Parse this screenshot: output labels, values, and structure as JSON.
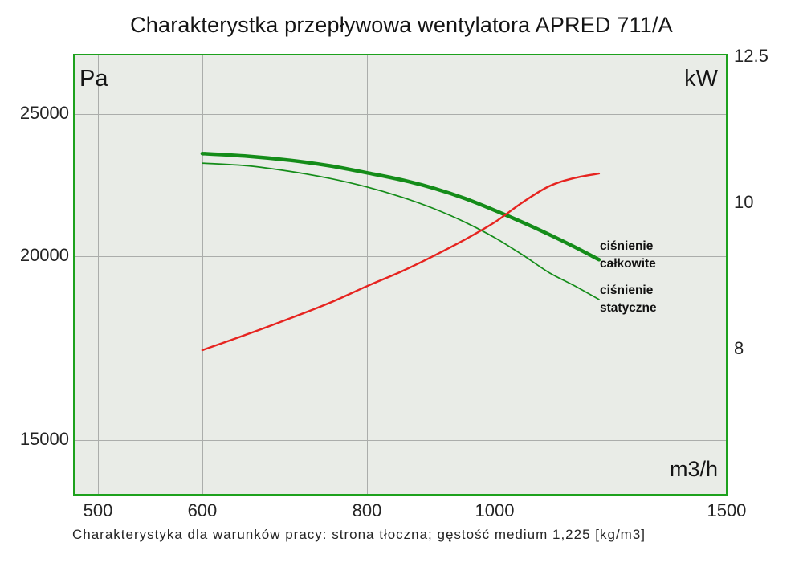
{
  "title": "Charakterystka przepływowa wentylatora APRED 711/A",
  "caption": "Charakterystyka dla warunków pracy: strona tłoczna; gęstość medium 1,225 [kg/m3]",
  "axes": {
    "left_unit": "Pa",
    "right_unit": "kW",
    "x_unit": "m3/h",
    "left_ticks": [
      "25000",
      "20000",
      "15000"
    ],
    "right_ticks": [
      "12.5",
      "10",
      "8"
    ],
    "x_ticks": [
      "500",
      "600",
      "800",
      "1000",
      "1500"
    ]
  },
  "labels": {
    "total_line1": "ciśnienie",
    "total_line2": "całkowite",
    "static_line1": "ciśnienie",
    "static_line2": "statyczne"
  },
  "colors": {
    "curve_green": "#148c19",
    "curve_red": "#e62420",
    "border_green": "#1da11d",
    "grid": "#abadab",
    "plot_bg": "#e9ece7",
    "text": "#1c1c1c"
  },
  "chart_data": {
    "type": "line",
    "title": "Charakterystka przepływowa wentylatora APRED 711/A",
    "x_scale": "log",
    "y_scale": "log",
    "grid": true,
    "x_unit": "m3/h",
    "x_ticks": [
      500,
      600,
      800,
      1000,
      1500
    ],
    "left_axis": {
      "unit": "Pa",
      "ticks": [
        25000,
        20000,
        15000
      ]
    },
    "right_axis": {
      "unit": "kW",
      "ticks": [
        12.5,
        10,
        8
      ]
    },
    "x": [
      600,
      650,
      700,
      750,
      800,
      850,
      900,
      950,
      1000,
      1050,
      1100,
      1150,
      1200
    ],
    "series": [
      {
        "key": "total",
        "name": "ciśnienie całkowite",
        "unit": "Pa",
        "axis": "left",
        "color": "#148c19",
        "values": [
          23500,
          23400,
          23250,
          23050,
          22800,
          22550,
          22250,
          21900,
          21500,
          21100,
          20700,
          20300,
          19900
        ]
      },
      {
        "key": "static",
        "name": "ciśnienie statyczne",
        "unit": "Pa",
        "axis": "left",
        "color": "#148c19",
        "values": [
          23150,
          23050,
          22850,
          22600,
          22300,
          21950,
          21550,
          21100,
          20600,
          20050,
          19500,
          19100,
          18700
        ]
      },
      {
        "key": "power",
        "name": "kW",
        "unit": "kW",
        "axis": "right",
        "color": "#e62420",
        "values": [
          7.98,
          8.18,
          8.38,
          8.58,
          8.8,
          9.0,
          9.22,
          9.45,
          9.7,
          10.0,
          10.25,
          10.38,
          10.45
        ]
      }
    ]
  }
}
